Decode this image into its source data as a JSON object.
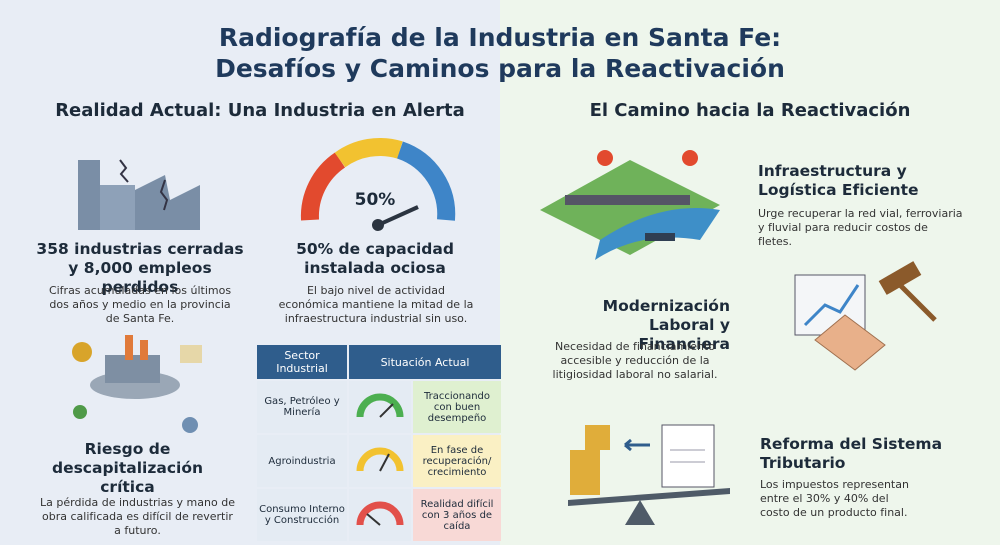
{
  "header": {
    "title": [
      "Radiografía de la Industria en Santa Fe:",
      "Desafíos y Caminos para la Reactivación"
    ]
  },
  "left": {
    "heading": "Realidad Actual: Una Industria en Alerta",
    "cards": [
      {
        "title": "358 industrias cerradas y 8,000 empleos perdidos",
        "text": "Cifras acumuladas en los últimos dos años y medio en la provincia de Santa Fe."
      },
      {
        "gauge_label": "50%",
        "title": "50% de capacidad instalada ociosa",
        "text": "El bajo nivel de actividad económica mantiene la mitad de la infraestructura industrial sin uso."
      },
      {
        "title": "Riesgo de descapitalización crítica",
        "text": "La pérdida de industrias y mano de obra calificada es difícil de revertir a futuro."
      }
    ]
  },
  "table": {
    "header": [
      "Sector Industrial",
      "Situación Actual"
    ],
    "rows": [
      [
        "Gas, Petróleo y Minería",
        "Traccionando con buen desempeño"
      ],
      [
        "Agroindustria",
        "En fase de recuperación/ crecimiento"
      ],
      [
        "Consumo Interno y Construcción",
        "Realidad difícil con 3 años de caída"
      ]
    ]
  },
  "right": {
    "heading": "El Camino hacia la Reactivación",
    "items": [
      {
        "title": "Infraestructura y Logística Eficiente",
        "text": "Urge recuperar la red vial, ferroviaria y fluvial para reducir costos de fletes."
      },
      {
        "title": "Modernización Laboral y Financiera",
        "text": "Necesidad de financiamiento accesible y reducción de la litigiosidad laboral no salarial."
      },
      {
        "title": "Reforma del Sistema Tributario",
        "text": "Los impuestos representan entre el 30% y 40% del costo de un producto final."
      }
    ]
  }
}
